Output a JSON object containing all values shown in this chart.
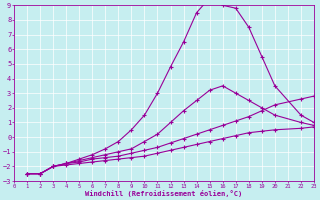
{
  "xlabel": "Windchill (Refroidissement éolien,°C)",
  "ylabel": "",
  "background_color": "#c6eef0",
  "line_color": "#990099",
  "grid_color": "#aadddd",
  "xlim": [
    0,
    23
  ],
  "ylim": [
    -3,
    9
  ],
  "xticks": [
    0,
    1,
    2,
    3,
    4,
    5,
    6,
    7,
    8,
    9,
    10,
    11,
    12,
    13,
    14,
    15,
    16,
    17,
    18,
    19,
    20,
    21,
    22,
    23
  ],
  "yticks": [
    -3,
    -2,
    -1,
    0,
    1,
    2,
    3,
    4,
    5,
    6,
    7,
    8,
    9
  ],
  "lines": [
    {
      "x": [
        1,
        2,
        3,
        4,
        5,
        6,
        7,
        8,
        9,
        10,
        11,
        12,
        13,
        14,
        15,
        16,
        17,
        18,
        19,
        20,
        22,
        23
      ],
      "y": [
        -2.5,
        -2.5,
        -2.0,
        -1.8,
        -1.5,
        -1.2,
        -0.8,
        -0.3,
        0.5,
        1.5,
        3.0,
        4.8,
        6.5,
        8.5,
        9.5,
        9.0,
        8.8,
        7.5,
        5.5,
        3.5,
        1.5,
        1.0
      ]
    },
    {
      "x": [
        1,
        2,
        3,
        4,
        5,
        6,
        7,
        8,
        9,
        10,
        11,
        12,
        13,
        14,
        15,
        16,
        17,
        18,
        19,
        20,
        22,
        23
      ],
      "y": [
        -2.5,
        -2.5,
        -2.0,
        -1.8,
        -1.6,
        -1.4,
        -1.2,
        -1.0,
        -0.8,
        -0.3,
        0.2,
        1.0,
        1.8,
        2.5,
        3.2,
        3.5,
        3.0,
        2.5,
        2.0,
        1.5,
        1.0,
        0.8
      ]
    },
    {
      "x": [
        1,
        2,
        3,
        4,
        5,
        6,
        7,
        8,
        9,
        10,
        11,
        12,
        13,
        14,
        15,
        16,
        17,
        18,
        19,
        20,
        22,
        23
      ],
      "y": [
        -2.5,
        -2.5,
        -2.0,
        -1.8,
        -1.7,
        -1.5,
        -1.4,
        -1.3,
        -1.1,
        -0.9,
        -0.7,
        -0.4,
        -0.1,
        0.2,
        0.5,
        0.8,
        1.1,
        1.4,
        1.8,
        2.2,
        2.6,
        2.8
      ]
    },
    {
      "x": [
        1,
        2,
        3,
        4,
        5,
        6,
        7,
        8,
        9,
        10,
        11,
        12,
        13,
        14,
        15,
        16,
        17,
        18,
        19,
        20,
        22,
        23
      ],
      "y": [
        -2.5,
        -2.5,
        -2.0,
        -1.9,
        -1.8,
        -1.7,
        -1.6,
        -1.5,
        -1.4,
        -1.3,
        -1.1,
        -0.9,
        -0.7,
        -0.5,
        -0.3,
        -0.1,
        0.1,
        0.3,
        0.4,
        0.5,
        0.6,
        0.7
      ]
    }
  ]
}
